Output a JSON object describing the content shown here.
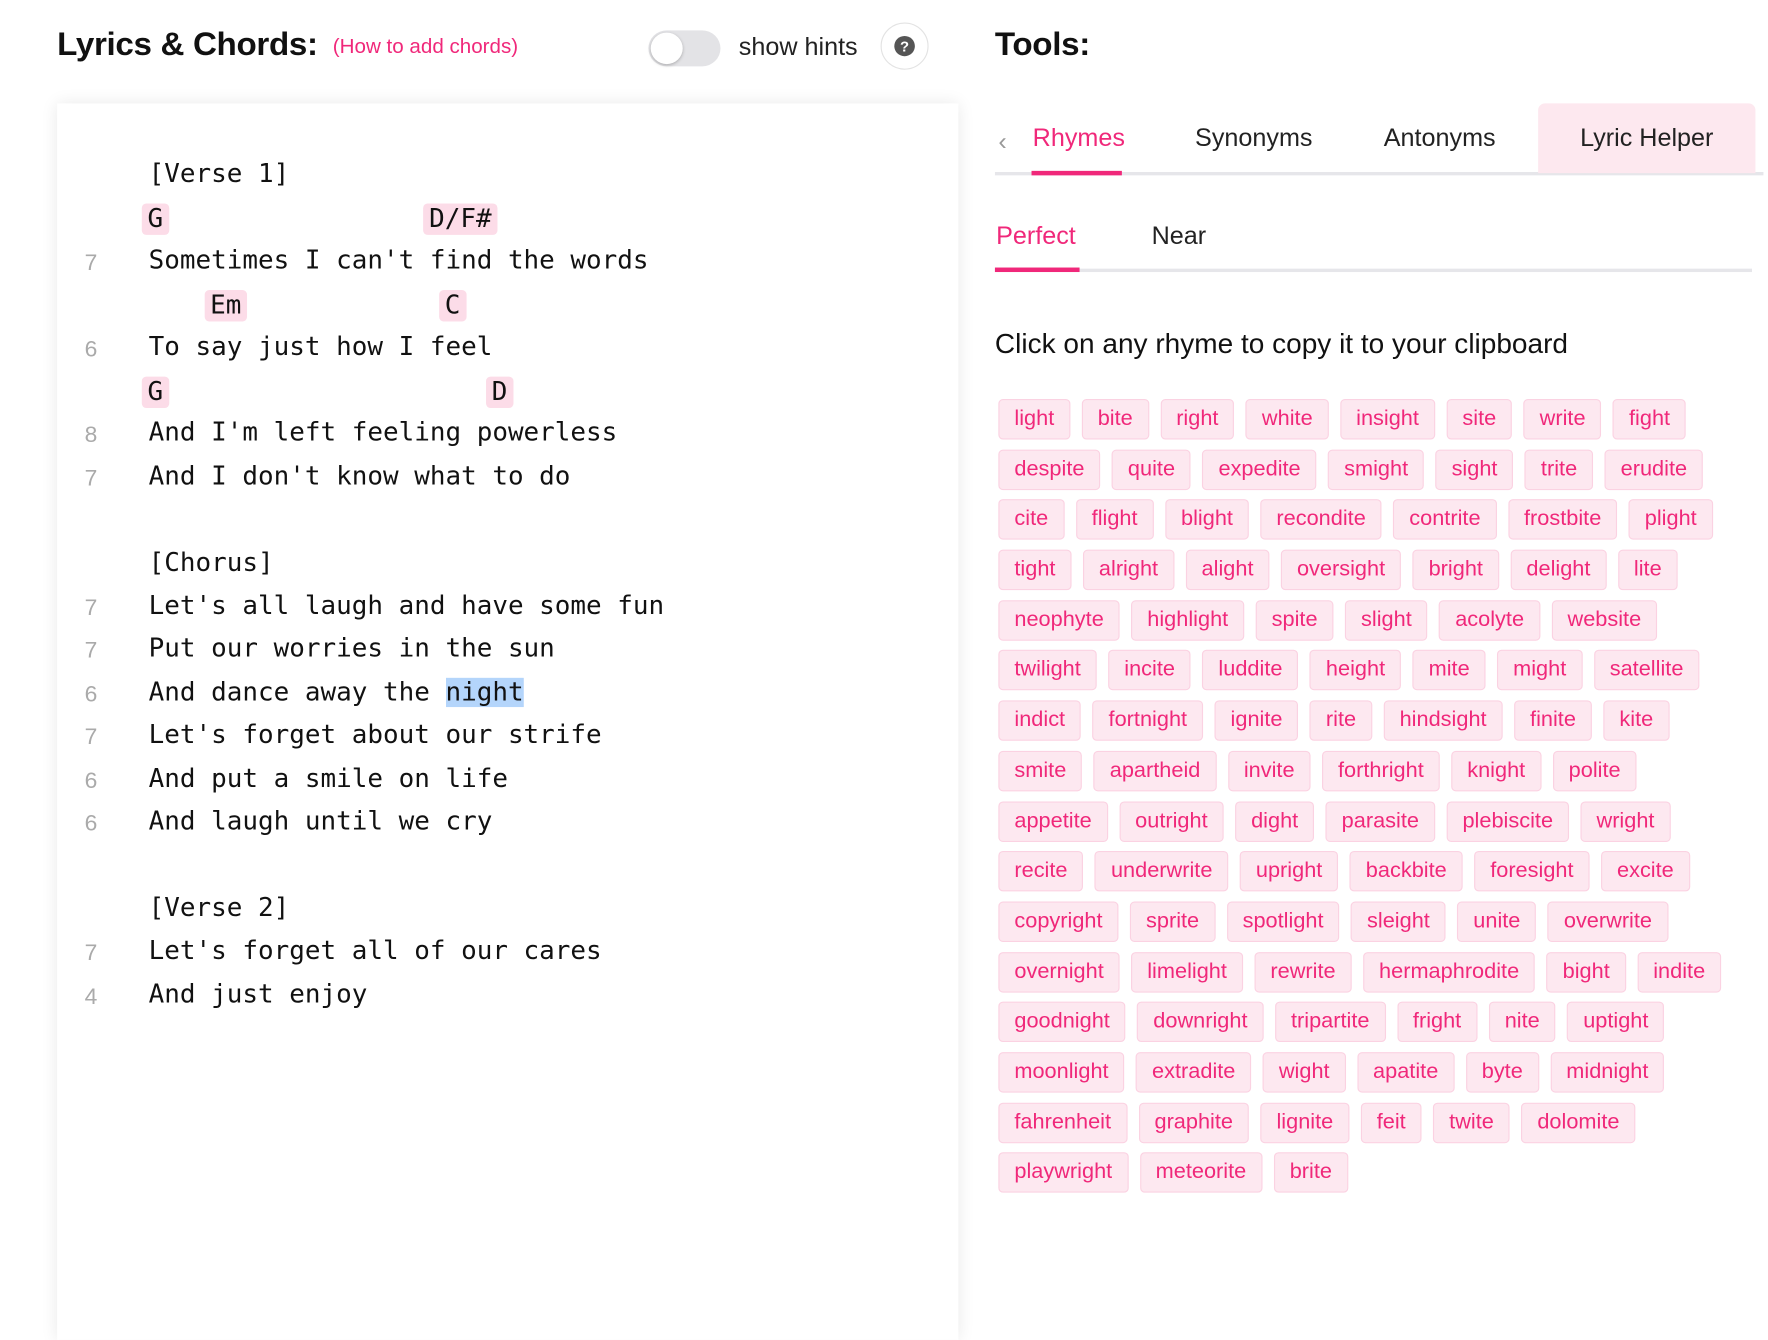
{
  "header": {
    "title": "Lyrics & Chords:",
    "help_link": "(How to add chords)",
    "toggle_label": "show hints",
    "toggle_on": false,
    "help_icon": "?"
  },
  "tools": {
    "title": "Tools:",
    "tabs": [
      "Rhymes",
      "Synonyms",
      "Antonyms",
      "Lyric Helper"
    ],
    "active_tab": "Rhymes",
    "subtabs": [
      "Perfect",
      "Near"
    ],
    "active_subtab": "Perfect",
    "instruction": "Click on any rhyme to copy it to your clipboard"
  },
  "colors": {
    "accent": "#f0287a",
    "chord_bg": "#fcdce8",
    "tag_bg": "#fde8f0",
    "selection": "#b4d5fb"
  },
  "lyrics": [
    {
      "type": "heading",
      "text": "[Verse 1]"
    },
    {
      "type": "chords",
      "chords": [
        {
          "name": "G",
          "col": 0
        },
        {
          "name": "D/F#",
          "col": 18
        }
      ]
    },
    {
      "type": "line",
      "num": "7",
      "text": "Sometimes I can't find the words"
    },
    {
      "type": "chords",
      "chords": [
        {
          "name": "Em",
          "col": 4
        },
        {
          "name": "C",
          "col": 19
        }
      ]
    },
    {
      "type": "line",
      "num": "6",
      "text": "To say just how I feel"
    },
    {
      "type": "chords",
      "chords": [
        {
          "name": "G",
          "col": 0
        },
        {
          "name": "D",
          "col": 22
        }
      ]
    },
    {
      "type": "line",
      "num": "8",
      "text": "And I'm left feeling powerless"
    },
    {
      "type": "line",
      "num": "7",
      "text": "And I don't know what to do"
    },
    {
      "type": "blank"
    },
    {
      "type": "heading",
      "text": "[Chorus]"
    },
    {
      "type": "line",
      "num": "7",
      "text": "Let's all laugh and have some fun"
    },
    {
      "type": "line",
      "num": "7",
      "text": "Put our worries in the sun"
    },
    {
      "type": "line",
      "num": "6",
      "text": "And dance away the night",
      "selected": "night"
    },
    {
      "type": "line",
      "num": "7",
      "text": "Let's forget about our strife"
    },
    {
      "type": "line",
      "num": "6",
      "text": "And put a smile on life"
    },
    {
      "type": "line",
      "num": "6",
      "text": "And laugh until we cry"
    },
    {
      "type": "blank"
    },
    {
      "type": "heading",
      "text": "[Verse 2]"
    },
    {
      "type": "line",
      "num": "7",
      "text": "Let's forget all of our cares"
    },
    {
      "type": "line",
      "num": "4",
      "text": "And just enjoy"
    }
  ],
  "rhymes": [
    "light",
    "bite",
    "right",
    "white",
    "insight",
    "site",
    "write",
    "fight",
    "despite",
    "quite",
    "expedite",
    "smight",
    "sight",
    "trite",
    "erudite",
    "cite",
    "flight",
    "blight",
    "recondite",
    "contrite",
    "frostbite",
    "plight",
    "tight",
    "alright",
    "alight",
    "oversight",
    "bright",
    "delight",
    "lite",
    "neophyte",
    "highlight",
    "spite",
    "slight",
    "acolyte",
    "website",
    "twilight",
    "incite",
    "luddite",
    "height",
    "mite",
    "might",
    "satellite",
    "indict",
    "fortnight",
    "ignite",
    "rite",
    "hindsight",
    "finite",
    "kite",
    "smite",
    "apartheid",
    "invite",
    "forthright",
    "knight",
    "polite",
    "appetite",
    "outright",
    "dight",
    "parasite",
    "plebiscite",
    "wright",
    "recite",
    "underwrite",
    "upright",
    "backbite",
    "foresight",
    "excite",
    "copyright",
    "sprite",
    "spotlight",
    "sleight",
    "unite",
    "overwrite",
    "overnight",
    "limelight",
    "rewrite",
    "hermaphrodite",
    "bight",
    "indite",
    "goodnight",
    "downright",
    "tripartite",
    "fright",
    "nite",
    "uptight",
    "moonlight",
    "extradite",
    "wight",
    "apatite",
    "byte",
    "midnight",
    "fahrenheit",
    "graphite",
    "lignite",
    "feit",
    "twite",
    "dolomite",
    "playwright",
    "meteorite",
    "brite"
  ]
}
